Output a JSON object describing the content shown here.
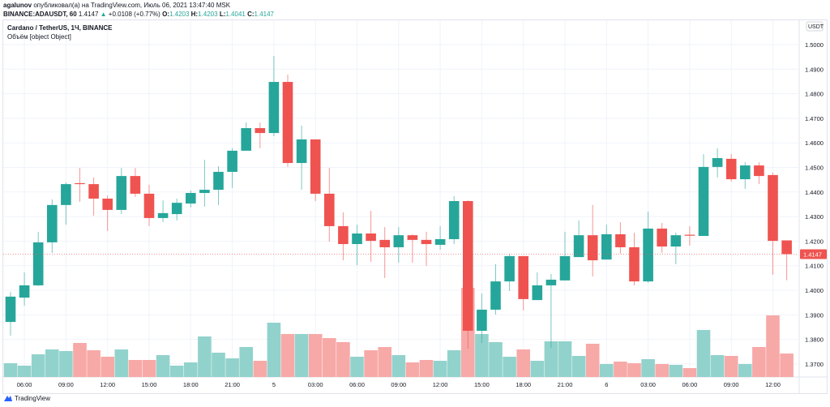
{
  "header": {
    "author": "agalunov",
    "published": "опубликовал(а) на TradingView.com, Июль 06, 2021 13:47:40 MSK",
    "symbol": "BINANCE:ADAUSDT, 60",
    "last": "1.4147",
    "change_arrow": "▲",
    "change": "+0.0108 (+0.77%)",
    "o_label": "O:",
    "o": "1.4203",
    "h_label": "H:",
    "h": "1.4203",
    "l_label": "L:",
    "l": "1.4041",
    "c_label": "C:",
    "c": "1.4147"
  },
  "legend": {
    "title": "Cardano / TetherUS, 1Ч, BINANCE",
    "volume": "Объём [object Object]"
  },
  "price_axis": {
    "currency": "USDT",
    "ticks": [
      "1.5000",
      "1.4900",
      "1.4800",
      "1.4700",
      "1.4600",
      "1.4500",
      "1.4400",
      "1.4300",
      "1.4200",
      "1.4100",
      "1.4000",
      "1.3900",
      "1.3800",
      "1.3700"
    ],
    "last_price_label": "1.4147"
  },
  "time_axis": {
    "ticks": [
      {
        "i": 1,
        "label": "06:00"
      },
      {
        "i": 4,
        "label": "09:00"
      },
      {
        "i": 7,
        "label": "12:00"
      },
      {
        "i": 10,
        "label": "15:00"
      },
      {
        "i": 13,
        "label": "18:00"
      },
      {
        "i": 16,
        "label": "21:00"
      },
      {
        "i": 19,
        "label": "5"
      },
      {
        "i": 22,
        "label": "03:00"
      },
      {
        "i": 25,
        "label": "06:00"
      },
      {
        "i": 28,
        "label": "09:00"
      },
      {
        "i": 31,
        "label": "12:00"
      },
      {
        "i": 34,
        "label": "15:00"
      },
      {
        "i": 37,
        "label": "18:00"
      },
      {
        "i": 40,
        "label": "21:00"
      },
      {
        "i": 43,
        "label": "6"
      },
      {
        "i": 46,
        "label": "03:00"
      },
      {
        "i": 49,
        "label": "06:00"
      },
      {
        "i": 52,
        "label": "09:00"
      },
      {
        "i": 55,
        "label": "12:00"
      }
    ]
  },
  "colors": {
    "up": "#26a69a",
    "down": "#ef5350",
    "up_volume": "#92d2cc",
    "down_volume": "#f7a9a7",
    "grid": "#f0f3fa"
  },
  "footer": {
    "brand": "TradingView"
  },
  "chart_data": {
    "type": "candlestick",
    "ylim": [
      1.365,
      1.51
    ],
    "last_price": 1.4147,
    "columns": [
      "open",
      "high",
      "low",
      "close",
      "volume_relative"
    ],
    "candles": [
      [
        1.3871,
        1.3993,
        1.3815,
        1.3974,
        17
      ],
      [
        1.397,
        1.4073,
        1.3937,
        1.402,
        14
      ],
      [
        1.402,
        1.4238,
        1.4017,
        1.4195,
        28
      ],
      [
        1.4195,
        1.437,
        1.4152,
        1.4347,
        34
      ],
      [
        1.4347,
        1.4439,
        1.4267,
        1.4432,
        32
      ],
      [
        1.4436,
        1.4498,
        1.436,
        1.4432,
        42
      ],
      [
        1.4432,
        1.4459,
        1.4304,
        1.4373,
        33
      ],
      [
        1.4373,
        1.4386,
        1.4241,
        1.4327,
        25
      ],
      [
        1.4327,
        1.4498,
        1.431,
        1.4465,
        34
      ],
      [
        1.4465,
        1.4498,
        1.438,
        1.4393,
        21
      ],
      [
        1.4393,
        1.4429,
        1.4261,
        1.4294,
        21
      ],
      [
        1.4294,
        1.4366,
        1.4277,
        1.4314,
        27
      ],
      [
        1.431,
        1.4373,
        1.4284,
        1.4356,
        14
      ],
      [
        1.4353,
        1.4406,
        1.4337,
        1.4396,
        18
      ],
      [
        1.4396,
        1.4531,
        1.434,
        1.4409,
        50
      ],
      [
        1.4409,
        1.4505,
        1.4347,
        1.4482,
        30
      ],
      [
        1.4482,
        1.4578,
        1.4416,
        1.4568,
        23
      ],
      [
        1.4568,
        1.4683,
        1.4568,
        1.466,
        37
      ],
      [
        1.466,
        1.4683,
        1.4578,
        1.464,
        20
      ],
      [
        1.464,
        1.4954,
        1.4627,
        1.4848,
        67
      ],
      [
        1.4848,
        1.4878,
        1.4502,
        1.4518,
        53
      ],
      [
        1.4518,
        1.467,
        1.4409,
        1.4614,
        53
      ],
      [
        1.4614,
        1.4614,
        1.4363,
        1.4393,
        53
      ],
      [
        1.4393,
        1.4498,
        1.4198,
        1.4261,
        48
      ],
      [
        1.4261,
        1.4317,
        1.4122,
        1.4188,
        43
      ],
      [
        1.4188,
        1.4267,
        1.4102,
        1.4231,
        25
      ],
      [
        1.4231,
        1.4323,
        1.4116,
        1.4201,
        33
      ],
      [
        1.4205,
        1.4257,
        1.405,
        1.4175,
        37
      ],
      [
        1.4175,
        1.4257,
        1.4112,
        1.4224,
        27
      ],
      [
        1.4224,
        1.4228,
        1.4112,
        1.4205,
        18
      ],
      [
        1.4205,
        1.4238,
        1.4099,
        1.4188,
        21
      ],
      [
        1.4185,
        1.4261,
        1.4165,
        1.4208,
        20
      ],
      [
        1.4208,
        1.4383,
        1.4188,
        1.4363,
        33
      ],
      [
        1.4363,
        1.4366,
        1.3762,
        1.3835,
        110
      ],
      [
        1.3835,
        1.3987,
        1.3785,
        1.3921,
        53
      ],
      [
        1.3921,
        1.4106,
        1.3901,
        1.4036,
        43
      ],
      [
        1.4036,
        1.4149,
        1.3997,
        1.4139,
        25
      ],
      [
        1.4139,
        1.4139,
        1.3918,
        1.3964,
        34
      ],
      [
        1.396,
        1.4073,
        1.396,
        1.402,
        20
      ],
      [
        1.402,
        1.4066,
        1.3766,
        1.4043,
        44
      ],
      [
        1.404,
        1.4238,
        1.404,
        1.4139,
        44
      ],
      [
        1.4135,
        1.4284,
        1.4135,
        1.4224,
        26
      ],
      [
        1.4224,
        1.4347,
        1.4056,
        1.4122,
        41
      ],
      [
        1.4125,
        1.4267,
        1.4125,
        1.4228,
        16
      ],
      [
        1.4228,
        1.4277,
        1.4149,
        1.4175,
        19
      ],
      [
        1.4175,
        1.4234,
        1.402,
        1.4036,
        17
      ],
      [
        1.4036,
        1.432,
        1.403,
        1.4251,
        22
      ],
      [
        1.4251,
        1.4274,
        1.4152,
        1.4178,
        16
      ],
      [
        1.4178,
        1.4234,
        1.4106,
        1.4224,
        15
      ],
      [
        1.4226,
        1.4261,
        1.4182,
        1.4222,
        11
      ],
      [
        1.4221,
        1.4554,
        1.4221,
        1.4502,
        58
      ],
      [
        1.4502,
        1.4578,
        1.4459,
        1.4538,
        27
      ],
      [
        1.4535,
        1.4554,
        1.4442,
        1.4452,
        26
      ],
      [
        1.4452,
        1.4521,
        1.4413,
        1.4508,
        16
      ],
      [
        1.4508,
        1.4521,
        1.4432,
        1.4465,
        37
      ],
      [
        1.4469,
        1.4479,
        1.4063,
        1.4201,
        76
      ],
      [
        1.4203,
        1.4203,
        1.4041,
        1.4147,
        29
      ]
    ]
  }
}
